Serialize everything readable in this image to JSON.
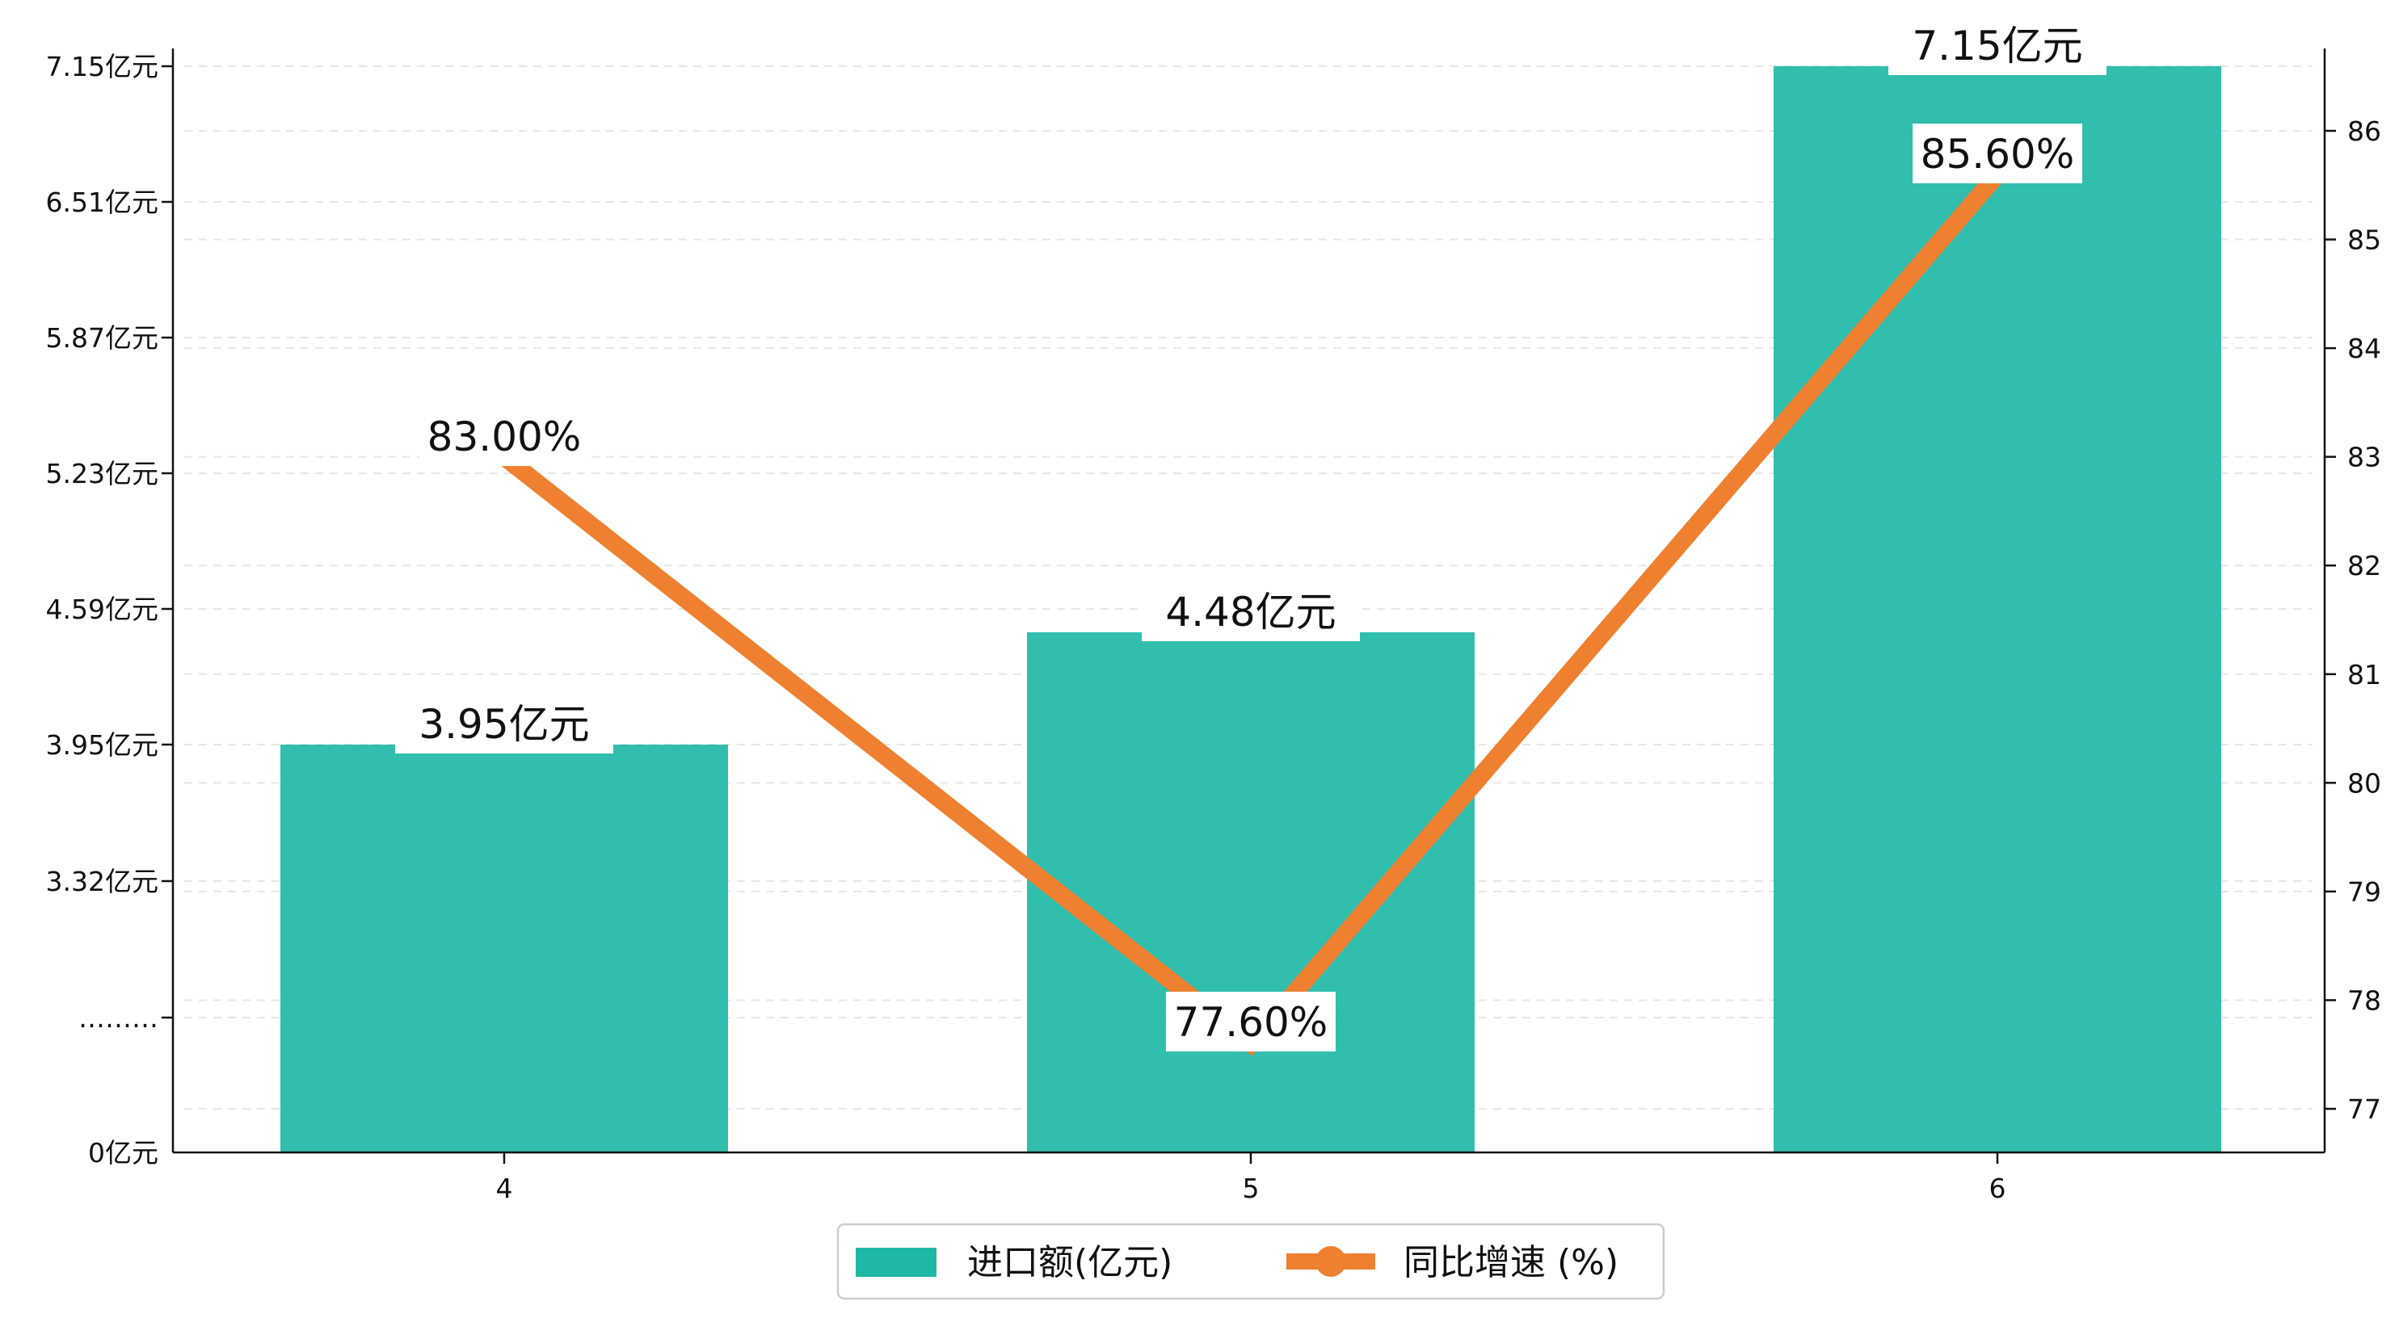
{
  "chart_data": {
    "type": "bar",
    "categories": [
      "4",
      "5",
      "6"
    ],
    "series": [
      {
        "name": "进口额(亿元)",
        "type": "bar",
        "axis": "left",
        "values": [
          3.95,
          4.48,
          7.15
        ],
        "labels": [
          "3.95亿元",
          "4.48亿元",
          "7.15亿元"
        ]
      },
      {
        "name": "同比增速 (%)",
        "type": "line",
        "axis": "right",
        "values": [
          83.0,
          77.6,
          85.6
        ],
        "labels": [
          "83.00%",
          "77.60%",
          "85.60%"
        ]
      }
    ],
    "left_axis": {
      "ticks": [
        {
          "value": 0,
          "label": "0亿元"
        },
        {
          "value": 2.68,
          "label": "………"
        },
        {
          "value": 3.32,
          "label": "3.32亿元"
        },
        {
          "value": 3.95,
          "label": "3.95亿元"
        },
        {
          "value": 4.59,
          "label": "4.59亿元"
        },
        {
          "value": 5.23,
          "label": "5.23亿元"
        },
        {
          "value": 5.87,
          "label": "5.87亿元"
        },
        {
          "value": 6.51,
          "label": "6.51亿元"
        },
        {
          "value": 7.15,
          "label": "7.15亿元"
        }
      ],
      "broken_axis": true,
      "break_label": "………"
    },
    "right_axis": {
      "ylim": [
        76.6,
        86.6
      ],
      "ticks": [
        77,
        78,
        79,
        80,
        81,
        82,
        83,
        84,
        85,
        86
      ]
    },
    "grid": "horizontal dashed",
    "legend_position": "bottom-center",
    "colors": {
      "bar": "#1fb8a6",
      "line": "#ee8030"
    }
  }
}
